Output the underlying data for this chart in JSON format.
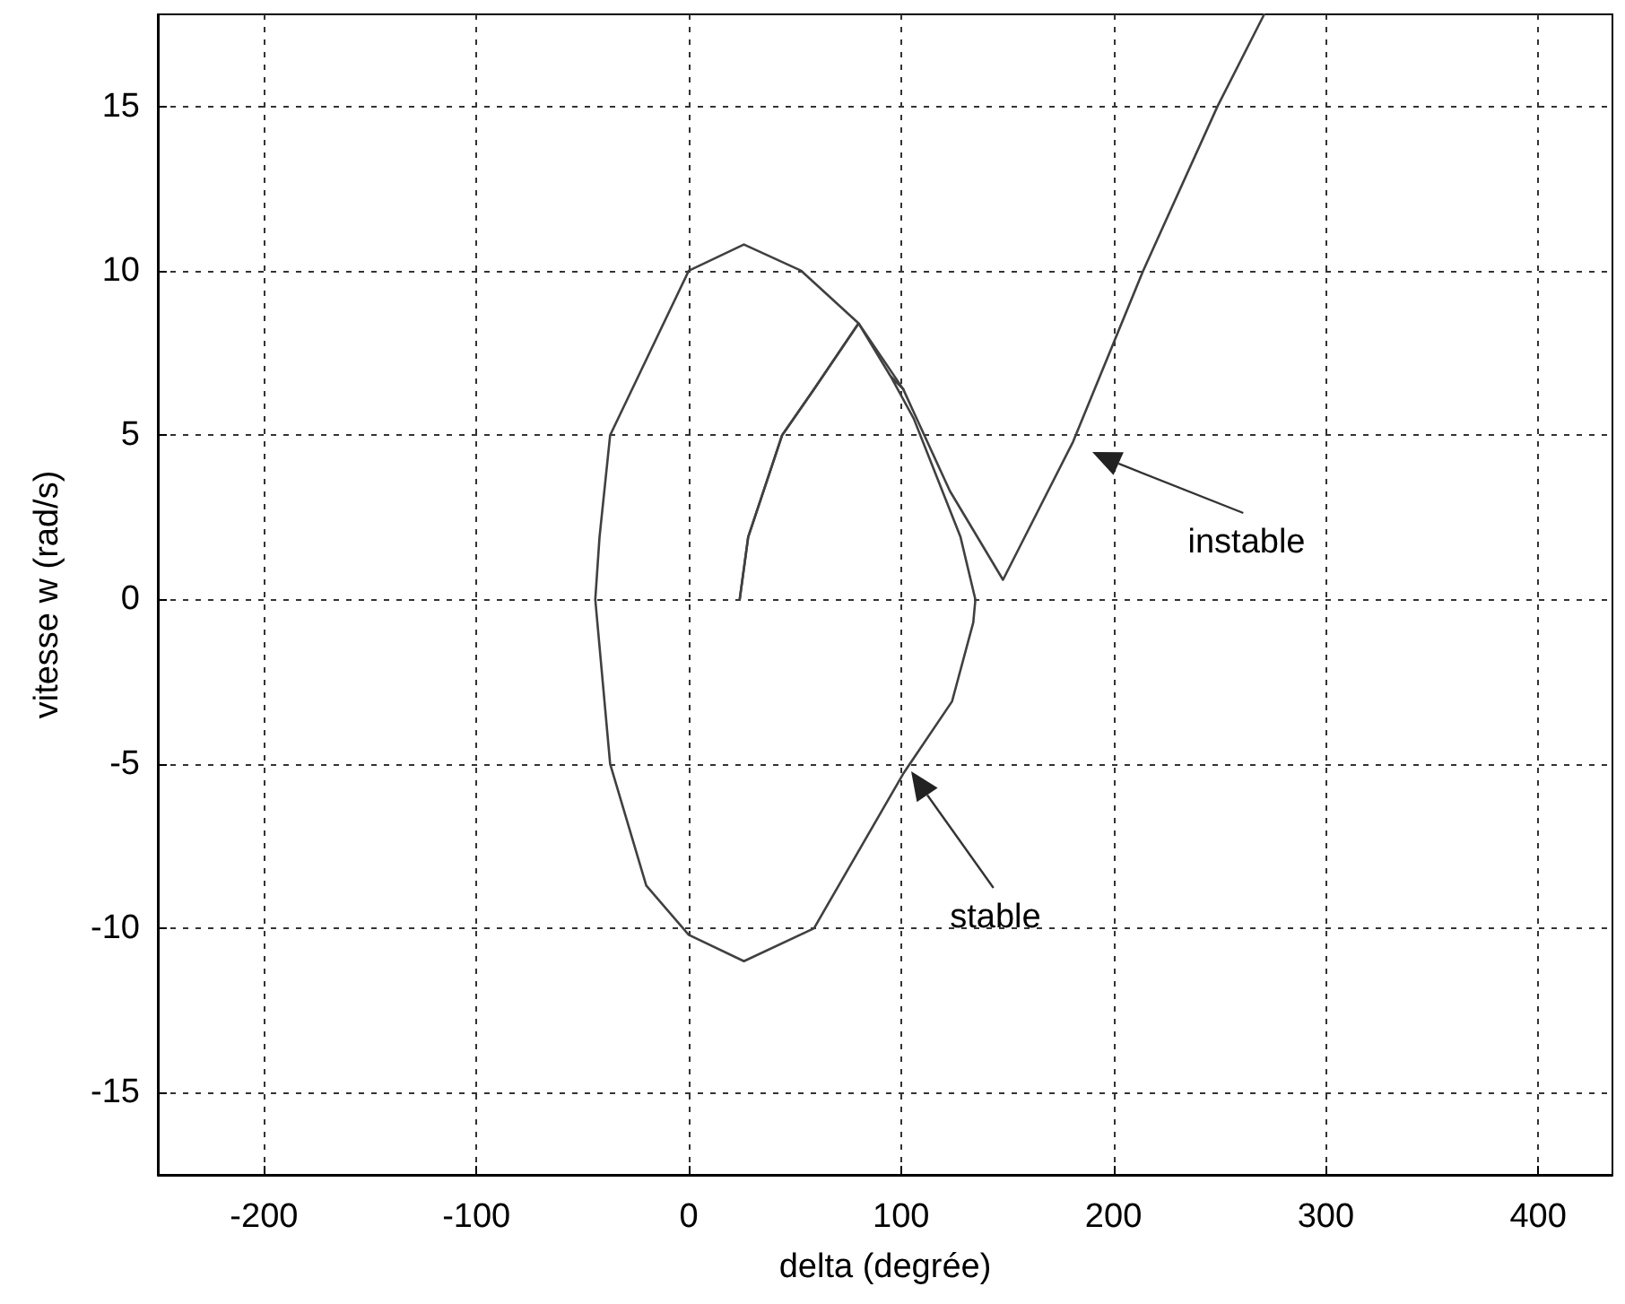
{
  "chart_data": {
    "type": "line",
    "xlabel": "delta (degrée)",
    "ylabel": "vitesse w (rad/s)",
    "xlim": [
      -250,
      435
    ],
    "xticks": [
      -200,
      -100,
      0,
      100,
      200,
      300,
      400
    ],
    "ylim": [
      -17.5,
      17.8
    ],
    "yticks": [
      -15,
      -10,
      -5,
      0,
      5,
      10,
      15
    ],
    "grid": true,
    "marker": "none",
    "line_style": "solid",
    "series": [
      {
        "color": "#404040",
        "x": [
          24,
          28,
          44,
          59,
          80,
          95,
          106,
          128,
          135,
          134,
          124,
          101,
          59,
          26,
          0,
          -20,
          -37,
          -44,
          -42,
          -37,
          0,
          26,
          53,
          80,
          95,
          101
        ],
        "values": [
          0,
          1.9,
          5,
          6.4,
          8.4,
          6.8,
          5.5,
          1.9,
          0,
          -0.7,
          -3.1,
          -5.3,
          -10,
          -11,
          -10.2,
          -8.7,
          -5,
          0,
          1.9,
          5,
          10,
          10.8,
          10,
          8.4,
          6.8,
          6.4
        ]
      },
      {
        "color": "#404040",
        "x": [
          24,
          28,
          44,
          59,
          80,
          101,
          123,
          148,
          181,
          214,
          249,
          271
        ],
        "values": [
          0,
          1.9,
          5,
          6.4,
          8.4,
          6.4,
          3.3,
          0.6,
          4.8,
          10,
          15,
          17.8
        ]
      }
    ],
    "annotations": [
      "instable",
      "stable"
    ]
  }
}
